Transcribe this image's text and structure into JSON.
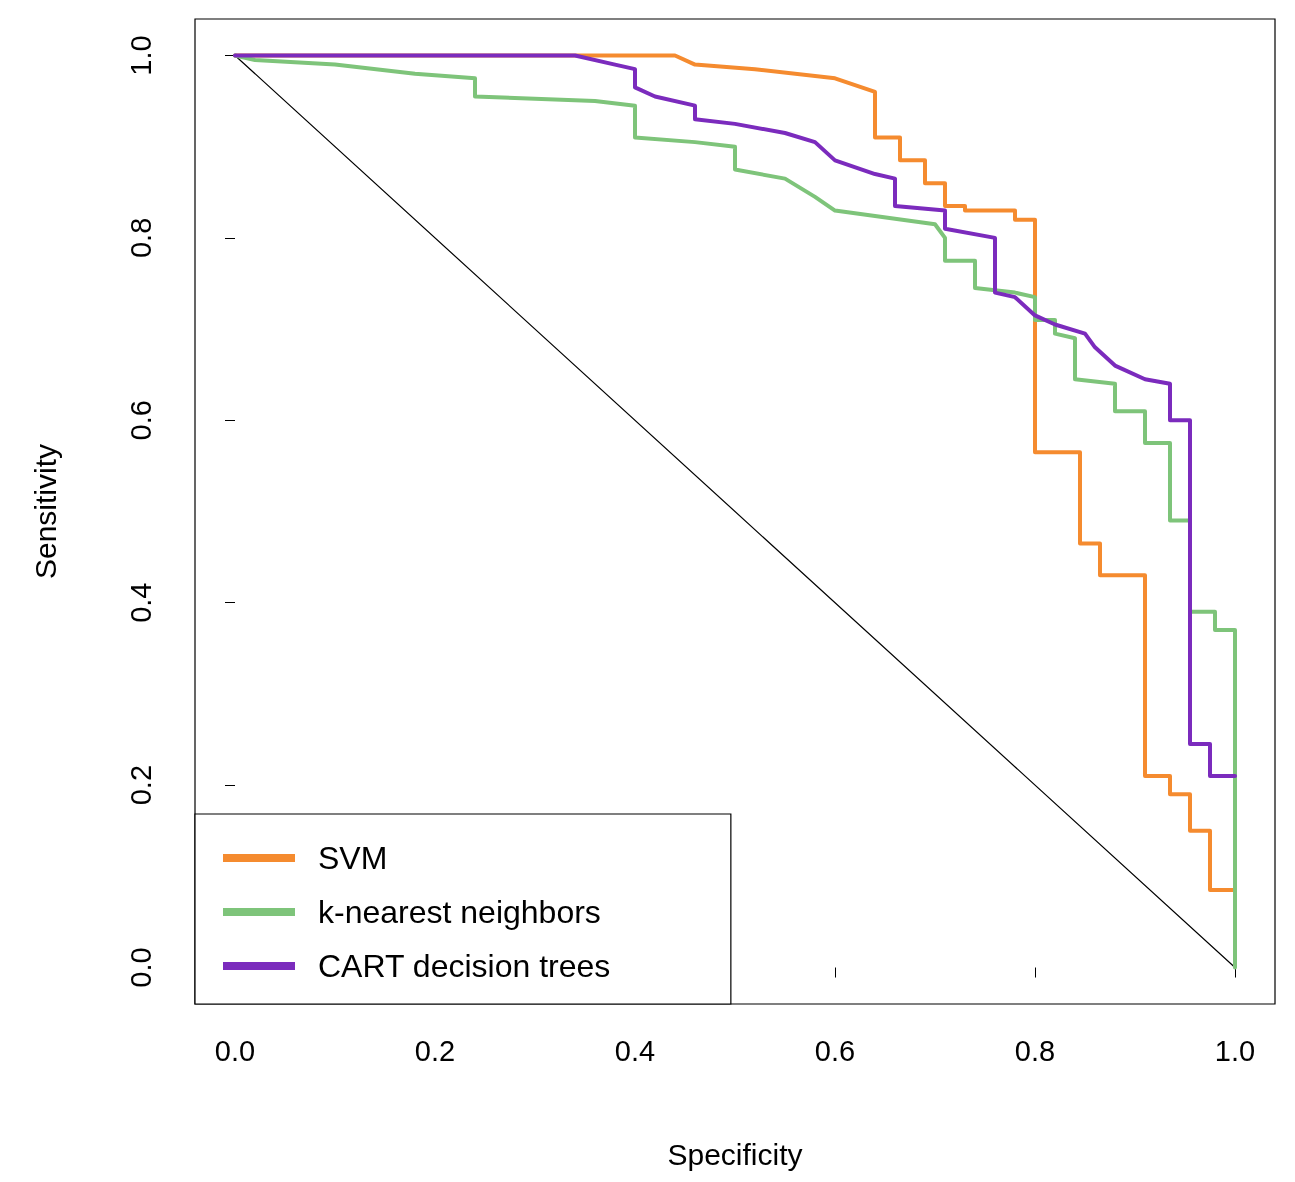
{
  "chart_data": {
    "type": "line",
    "xlabel": "Specificity",
    "ylabel": "Sensitivity",
    "xlim": [
      -0.04,
      1.04
    ],
    "ylim": [
      -0.04,
      1.04
    ],
    "xticks": [
      {
        "value": 0,
        "label": "0.0"
      },
      {
        "value": 0.2,
        "label": "0.2"
      },
      {
        "value": 0.4,
        "label": "0.4"
      },
      {
        "value": 0.6,
        "label": "0.6"
      },
      {
        "value": 0.8,
        "label": "0.8"
      },
      {
        "value": 1,
        "label": "1.0"
      }
    ],
    "yticks": [
      {
        "value": 0,
        "label": "0.0"
      },
      {
        "value": 0.2,
        "label": "0.2"
      },
      {
        "value": 0.4,
        "label": "0.4"
      },
      {
        "value": 0.6,
        "label": "0.6"
      },
      {
        "value": 0.8,
        "label": "0.8"
      },
      {
        "value": 1,
        "label": "1.0"
      }
    ],
    "grid": false,
    "legend": "bottom left",
    "marker": "none",
    "line_style": "solid",
    "series": [
      {
        "name": "SVM",
        "color": "#f58b2f",
        "x": [
          0,
          0.44,
          0.46,
          0.52,
          0.6,
          0.64,
          0.64,
          0.665,
          0.665,
          0.69,
          0.69,
          0.71,
          0.71,
          0.73,
          0.73,
          0.78,
          0.78,
          0.8,
          0.8,
          0.845,
          0.845,
          0.865,
          0.865,
          0.91,
          0.91,
          0.935,
          0.935,
          0.955,
          0.955,
          0.975,
          0.975,
          1.0
        ],
        "values": [
          1,
          1,
          0.99,
          0.985,
          0.975,
          0.96,
          0.91,
          0.91,
          0.885,
          0.885,
          0.86,
          0.86,
          0.835,
          0.835,
          0.83,
          0.83,
          0.82,
          0.82,
          0.565,
          0.565,
          0.465,
          0.465,
          0.43,
          0.43,
          0.21,
          0.21,
          0.19,
          0.19,
          0.15,
          0.15,
          0.085,
          0.085
        ]
      },
      {
        "name": "k-nearest neighbors",
        "color": "#7ec47a",
        "x": [
          0,
          0.02,
          0.1,
          0.18,
          0.24,
          0.24,
          0.36,
          0.4,
          0.4,
          0.46,
          0.5,
          0.5,
          0.55,
          0.58,
          0.6,
          0.7,
          0.71,
          0.71,
          0.74,
          0.74,
          0.78,
          0.8,
          0.8,
          0.82,
          0.82,
          0.84,
          0.84,
          0.88,
          0.88,
          0.91,
          0.91,
          0.935,
          0.935,
          0.955,
          0.955,
          0.98,
          0.98,
          1.0,
          1.0
        ],
        "values": [
          1,
          0.995,
          0.99,
          0.98,
          0.975,
          0.955,
          0.95,
          0.945,
          0.91,
          0.905,
          0.9,
          0.875,
          0.865,
          0.845,
          0.83,
          0.815,
          0.8,
          0.775,
          0.775,
          0.745,
          0.74,
          0.735,
          0.71,
          0.71,
          0.695,
          0.69,
          0.645,
          0.64,
          0.61,
          0.61,
          0.575,
          0.575,
          0.49,
          0.49,
          0.39,
          0.39,
          0.37,
          0.37,
          0
        ]
      },
      {
        "name": "CART decision trees",
        "color": "#7b2bbd",
        "x": [
          0,
          0.34,
          0.38,
          0.4,
          0.4,
          0.42,
          0.46,
          0.46,
          0.5,
          0.55,
          0.58,
          0.6,
          0.64,
          0.66,
          0.66,
          0.71,
          0.71,
          0.76,
          0.76,
          0.78,
          0.8,
          0.82,
          0.85,
          0.86,
          0.88,
          0.91,
          0.935,
          0.935,
          0.955,
          0.955,
          0.975,
          0.975,
          1.0
        ],
        "values": [
          1,
          1,
          0.99,
          0.985,
          0.965,
          0.955,
          0.945,
          0.93,
          0.925,
          0.915,
          0.905,
          0.885,
          0.87,
          0.865,
          0.835,
          0.83,
          0.81,
          0.8,
          0.74,
          0.735,
          0.715,
          0.705,
          0.695,
          0.68,
          0.66,
          0.645,
          0.64,
          0.6,
          0.6,
          0.245,
          0.245,
          0.21,
          0.21
        ]
      },
      {
        "color": "#000000",
        "x": [
          0,
          1
        ],
        "values": [
          1,
          0
        ]
      }
    ]
  }
}
